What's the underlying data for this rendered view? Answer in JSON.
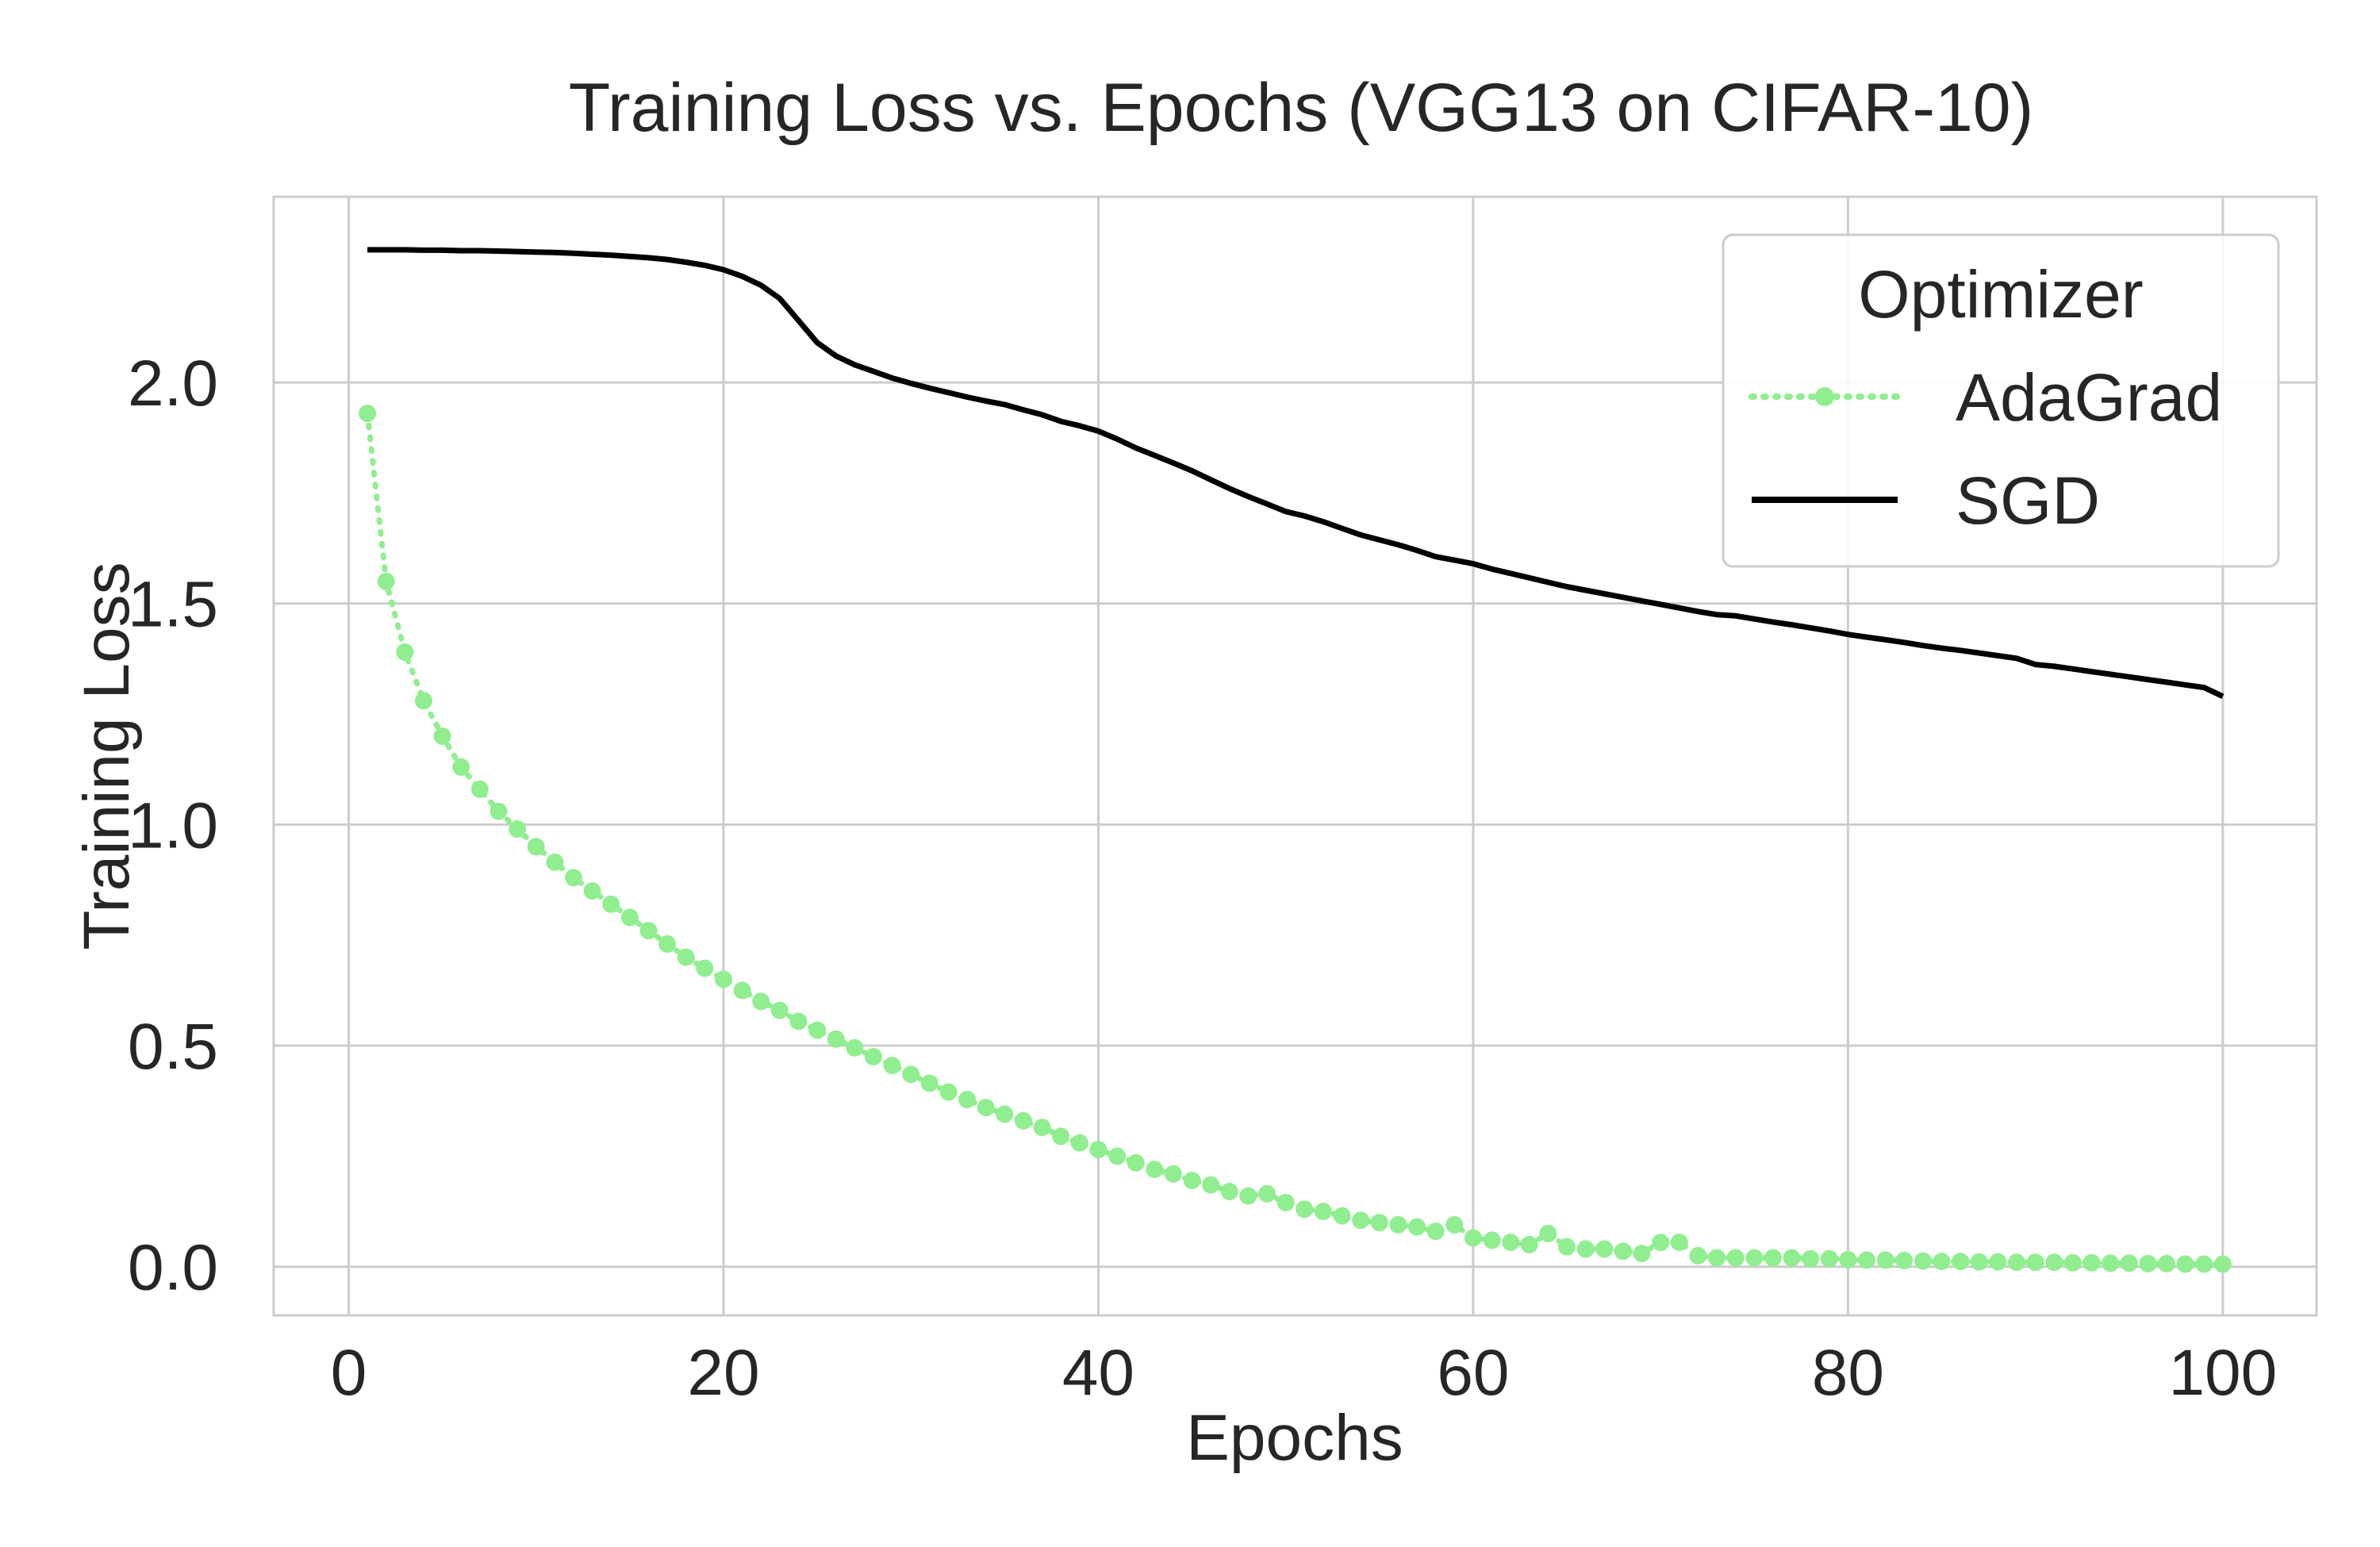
{
  "chart_data": {
    "type": "line",
    "title": "Training Loss vs. Epochs (VGG13 on CIFAR-10)",
    "xlabel": "Epochs",
    "ylabel": "Training Loss",
    "xlim": [
      -4,
      105
    ],
    "ylim": [
      -0.11,
      2.42
    ],
    "xticks": [
      0,
      20,
      40,
      60,
      80,
      100
    ],
    "yticks": [
      0.0,
      0.5,
      1.0,
      1.5,
      2.0
    ],
    "xtick_labels": [
      "0",
      "20",
      "40",
      "60",
      "80",
      "100"
    ],
    "ytick_labels": [
      "0.0",
      "0.5",
      "1.0",
      "1.5",
      "2.0"
    ],
    "grid": true,
    "legend": {
      "title": "Optimizer",
      "position": "top-right"
    },
    "x": [
      1,
      2,
      3,
      4,
      5,
      6,
      7,
      8,
      9,
      10,
      11,
      12,
      13,
      14,
      15,
      16,
      17,
      18,
      19,
      20,
      21,
      22,
      23,
      24,
      25,
      26,
      27,
      28,
      29,
      30,
      31,
      32,
      33,
      34,
      35,
      36,
      37,
      38,
      39,
      40,
      41,
      42,
      43,
      44,
      45,
      46,
      47,
      48,
      49,
      50,
      51,
      52,
      53,
      54,
      55,
      56,
      57,
      58,
      59,
      60,
      61,
      62,
      63,
      64,
      65,
      66,
      67,
      68,
      69,
      70,
      71,
      72,
      73,
      74,
      75,
      76,
      77,
      78,
      79,
      80,
      81,
      82,
      83,
      84,
      85,
      86,
      87,
      88,
      89,
      90,
      91,
      92,
      93,
      94,
      95,
      96,
      97,
      98,
      99,
      100
    ],
    "series": [
      {
        "name": "AdaGrad",
        "color": "#90ee90",
        "style": "dotted-markers",
        "values": [
          1.93,
          1.55,
          1.39,
          1.28,
          1.2,
          1.13,
          1.08,
          1.03,
          0.99,
          0.95,
          0.915,
          0.88,
          0.85,
          0.82,
          0.79,
          0.76,
          0.73,
          0.7,
          0.675,
          0.65,
          0.625,
          0.6,
          0.58,
          0.555,
          0.535,
          0.515,
          0.495,
          0.475,
          0.455,
          0.435,
          0.415,
          0.395,
          0.378,
          0.36,
          0.345,
          0.33,
          0.315,
          0.295,
          0.28,
          0.265,
          0.25,
          0.235,
          0.22,
          0.21,
          0.195,
          0.185,
          0.17,
          0.16,
          0.165,
          0.145,
          0.13,
          0.125,
          0.115,
          0.105,
          0.1,
          0.095,
          0.09,
          0.08,
          0.095,
          0.065,
          0.06,
          0.055,
          0.05,
          0.075,
          0.045,
          0.04,
          0.04,
          0.035,
          0.03,
          0.055,
          0.055,
          0.025,
          0.02,
          0.02,
          0.02,
          0.02,
          0.02,
          0.018,
          0.018,
          0.016,
          0.015,
          0.015,
          0.014,
          0.013,
          0.012,
          0.012,
          0.011,
          0.011,
          0.01,
          0.01,
          0.01,
          0.009,
          0.009,
          0.008,
          0.008,
          0.007,
          0.007,
          0.006,
          0.006,
          0.006
        ]
      },
      {
        "name": "SGD",
        "color": "#000000",
        "style": "solid",
        "values": [
          2.3,
          2.3,
          2.3,
          2.299,
          2.299,
          2.298,
          2.298,
          2.297,
          2.296,
          2.295,
          2.294,
          2.292,
          2.29,
          2.288,
          2.285,
          2.282,
          2.278,
          2.272,
          2.265,
          2.255,
          2.24,
          2.22,
          2.19,
          2.14,
          2.09,
          2.06,
          2.04,
          2.025,
          2.01,
          1.998,
          1.987,
          1.977,
          1.967,
          1.958,
          1.95,
          1.938,
          1.927,
          1.912,
          1.902,
          1.89,
          1.872,
          1.852,
          1.835,
          1.818,
          1.8,
          1.78,
          1.76,
          1.742,
          1.725,
          1.708,
          1.698,
          1.685,
          1.67,
          1.655,
          1.644,
          1.633,
          1.62,
          1.606,
          1.598,
          1.59,
          1.578,
          1.568,
          1.558,
          1.548,
          1.538,
          1.53,
          1.522,
          1.514,
          1.506,
          1.498,
          1.49,
          1.482,
          1.475,
          1.472,
          1.465,
          1.458,
          1.452,
          1.445,
          1.438,
          1.43,
          1.424,
          1.418,
          1.412,
          1.405,
          1.399,
          1.394,
          1.388,
          1.382,
          1.376,
          1.362,
          1.358,
          1.352,
          1.346,
          1.34,
          1.334,
          1.328,
          1.322,
          1.316,
          1.31,
          1.29
        ]
      }
    ]
  }
}
